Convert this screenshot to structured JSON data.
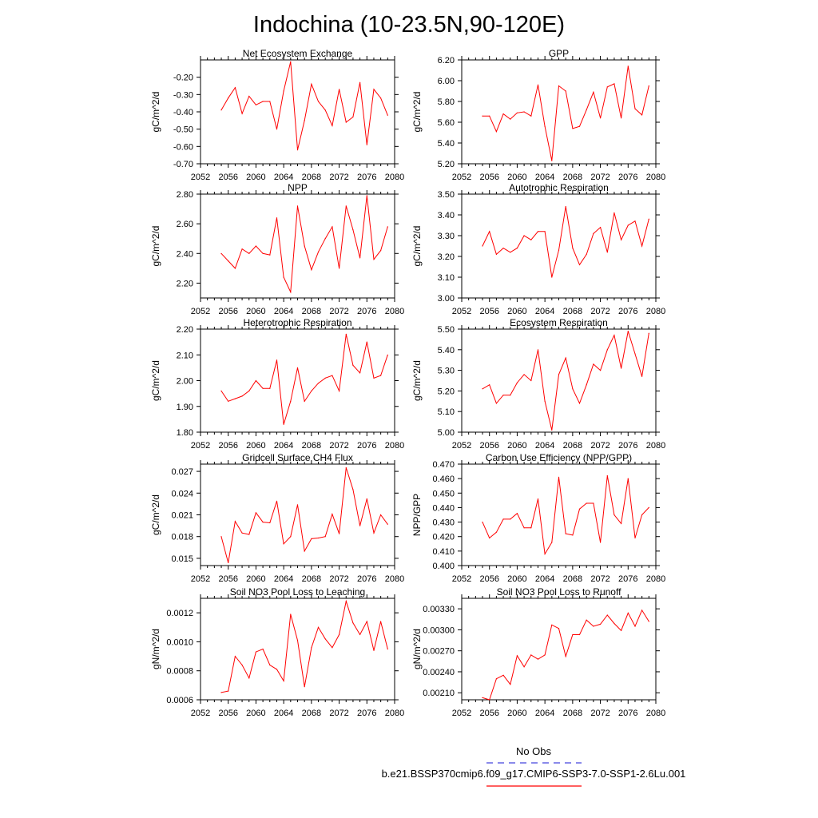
{
  "title": "Indochina (10-23.5N,90-120E)",
  "colors": {
    "model": "#ff0000",
    "obs": "#4444dd",
    "axis": "#000000"
  },
  "legend": {
    "obs_label": "No Obs",
    "model_label": "b.e21.BSSP370cmip6.f09_g17.CMIP6-SSP3-7.0-SSP1-2.6Lu.001"
  },
  "chart_data": [
    {
      "type": "line",
      "title": "Net Ecosystem Exchange",
      "ylabel": "gC/m^2/d",
      "xlim": [
        2052,
        2080
      ],
      "ylim": [
        -0.7,
        -0.1
      ],
      "xticks": [
        2052,
        2056,
        2060,
        2064,
        2068,
        2072,
        2076,
        2080
      ],
      "yticks": [
        "-0.70",
        "-0.60",
        "-0.50",
        "-0.40",
        "-0.30",
        "-0.20"
      ],
      "x": [
        2055,
        2056,
        2057,
        2058,
        2059,
        2060,
        2061,
        2062,
        2063,
        2064,
        2065,
        2066,
        2067,
        2068,
        2069,
        2070,
        2071,
        2072,
        2073,
        2074,
        2075,
        2076,
        2077,
        2078,
        2079
      ],
      "series": [
        {
          "values": [
            -0.39,
            -0.32,
            -0.26,
            -0.41,
            -0.31,
            -0.36,
            -0.34,
            -0.34,
            -0.5,
            -0.28,
            -0.11,
            -0.62,
            -0.45,
            -0.24,
            -0.34,
            -0.39,
            -0.48,
            -0.27,
            -0.46,
            -0.43,
            -0.23,
            -0.59,
            -0.27,
            -0.32,
            -0.42
          ]
        }
      ]
    },
    {
      "type": "line",
      "title": "GPP",
      "ylabel": "gC/m^2/d",
      "xlim": [
        2052,
        2080
      ],
      "ylim": [
        5.2,
        6.2
      ],
      "xticks": [
        2052,
        2056,
        2060,
        2064,
        2068,
        2072,
        2076,
        2080
      ],
      "yticks": [
        "5.20",
        "5.40",
        "5.60",
        "5.80",
        "6.00",
        "6.20"
      ],
      "x": [
        2055,
        2056,
        2057,
        2058,
        2059,
        2060,
        2061,
        2062,
        2063,
        2064,
        2065,
        2066,
        2067,
        2068,
        2069,
        2070,
        2071,
        2072,
        2073,
        2074,
        2075,
        2076,
        2077,
        2078,
        2079
      ],
      "series": [
        {
          "values": [
            5.66,
            5.66,
            5.51,
            5.68,
            5.63,
            5.69,
            5.7,
            5.66,
            5.96,
            5.56,
            5.23,
            5.95,
            5.9,
            5.54,
            5.56,
            5.72,
            5.89,
            5.64,
            5.94,
            5.97,
            5.64,
            6.14,
            5.73,
            5.67,
            5.95
          ]
        }
      ]
    },
    {
      "type": "line",
      "title": "NPP",
      "ylabel": "gC/m^2/d",
      "xlim": [
        2052,
        2080
      ],
      "ylim": [
        2.1,
        2.8
      ],
      "xticks": [
        2052,
        2056,
        2060,
        2064,
        2068,
        2072,
        2076,
        2080
      ],
      "yticks": [
        "2.20",
        "2.40",
        "2.60",
        "2.80"
      ],
      "x": [
        2055,
        2056,
        2057,
        2058,
        2059,
        2060,
        2061,
        2062,
        2063,
        2064,
        2065,
        2066,
        2067,
        2068,
        2069,
        2070,
        2071,
        2072,
        2073,
        2074,
        2075,
        2076,
        2077,
        2078,
        2079
      ],
      "series": [
        {
          "values": [
            2.4,
            2.35,
            2.3,
            2.43,
            2.4,
            2.45,
            2.4,
            2.39,
            2.64,
            2.24,
            2.14,
            2.72,
            2.45,
            2.29,
            2.41,
            2.5,
            2.58,
            2.3,
            2.72,
            2.56,
            2.37,
            2.79,
            2.36,
            2.42,
            2.58
          ]
        }
      ]
    },
    {
      "type": "line",
      "title": "Autotrophic Respiration",
      "ylabel": "gC/m^2/d",
      "xlim": [
        2052,
        2080
      ],
      "ylim": [
        3.0,
        3.5
      ],
      "xticks": [
        2052,
        2056,
        2060,
        2064,
        2068,
        2072,
        2076,
        2080
      ],
      "yticks": [
        "3.00",
        "3.10",
        "3.20",
        "3.30",
        "3.40",
        "3.50"
      ],
      "x": [
        2055,
        2056,
        2057,
        2058,
        2059,
        2060,
        2061,
        2062,
        2063,
        2064,
        2065,
        2066,
        2067,
        2068,
        2069,
        2070,
        2071,
        2072,
        2073,
        2074,
        2075,
        2076,
        2077,
        2078,
        2079
      ],
      "series": [
        {
          "values": [
            3.25,
            3.32,
            3.21,
            3.24,
            3.22,
            3.24,
            3.3,
            3.28,
            3.32,
            3.32,
            3.1,
            3.23,
            3.44,
            3.24,
            3.16,
            3.21,
            3.31,
            3.34,
            3.22,
            3.41,
            3.28,
            3.35,
            3.37,
            3.25,
            3.38
          ]
        }
      ]
    },
    {
      "type": "line",
      "title": "Heterotrophic Respiration",
      "ylabel": "gC/m^2/d",
      "xlim": [
        2052,
        2080
      ],
      "ylim": [
        1.8,
        2.2
      ],
      "xticks": [
        2052,
        2056,
        2060,
        2064,
        2068,
        2072,
        2076,
        2080
      ],
      "yticks": [
        "1.80",
        "1.90",
        "2.00",
        "2.10",
        "2.20"
      ],
      "x": [
        2055,
        2056,
        2057,
        2058,
        2059,
        2060,
        2061,
        2062,
        2063,
        2064,
        2065,
        2066,
        2067,
        2068,
        2069,
        2070,
        2071,
        2072,
        2073,
        2074,
        2075,
        2076,
        2077,
        2078,
        2079
      ],
      "series": [
        {
          "values": [
            1.96,
            1.92,
            1.93,
            1.94,
            1.96,
            2.0,
            1.97,
            1.97,
            2.08,
            1.83,
            1.92,
            2.05,
            1.92,
            1.96,
            1.99,
            2.01,
            2.02,
            1.96,
            2.18,
            2.06,
            2.03,
            2.15,
            2.01,
            2.02,
            2.1
          ]
        }
      ]
    },
    {
      "type": "line",
      "title": "Ecosystem Respiration",
      "ylabel": "gC/m^2/d",
      "xlim": [
        2052,
        2080
      ],
      "ylim": [
        5.0,
        5.5
      ],
      "xticks": [
        2052,
        2056,
        2060,
        2064,
        2068,
        2072,
        2076,
        2080
      ],
      "yticks": [
        "5.00",
        "5.10",
        "5.20",
        "5.30",
        "5.40",
        "5.50"
      ],
      "x": [
        2055,
        2056,
        2057,
        2058,
        2059,
        2060,
        2061,
        2062,
        2063,
        2064,
        2065,
        2066,
        2067,
        2068,
        2069,
        2070,
        2071,
        2072,
        2073,
        2074,
        2075,
        2076,
        2077,
        2078,
        2079
      ],
      "series": [
        {
          "values": [
            5.21,
            5.23,
            5.14,
            5.18,
            5.18,
            5.24,
            5.28,
            5.25,
            5.4,
            5.15,
            5.01,
            5.28,
            5.36,
            5.21,
            5.14,
            5.23,
            5.33,
            5.3,
            5.4,
            5.47,
            5.31,
            5.49,
            5.38,
            5.27,
            5.48
          ]
        }
      ]
    },
    {
      "type": "line",
      "title": "Gridcell Surface CH4 Flux",
      "ylabel": "gC/m^2/d",
      "xlim": [
        2052,
        2080
      ],
      "ylim": [
        0.014,
        0.028
      ],
      "xticks": [
        2052,
        2056,
        2060,
        2064,
        2068,
        2072,
        2076,
        2080
      ],
      "yticks": [
        "0.015",
        "0.018",
        "0.021",
        "0.024",
        "0.027"
      ],
      "x": [
        2055,
        2056,
        2057,
        2058,
        2059,
        2060,
        2061,
        2062,
        2063,
        2064,
        2065,
        2066,
        2067,
        2068,
        2069,
        2070,
        2071,
        2072,
        2073,
        2074,
        2075,
        2076,
        2077,
        2078,
        2079
      ],
      "series": [
        {
          "values": [
            0.018,
            0.0144,
            0.0201,
            0.0185,
            0.0183,
            0.0213,
            0.02,
            0.0199,
            0.0229,
            0.017,
            0.018,
            0.0224,
            0.016,
            0.0177,
            0.0178,
            0.018,
            0.0211,
            0.0184,
            0.0275,
            0.0245,
            0.0195,
            0.0232,
            0.0185,
            0.021,
            0.0197
          ]
        }
      ]
    },
    {
      "type": "line",
      "title": "Carbon Use Efficiency (NPP/GPP)",
      "ylabel": "NPP/GPP",
      "xlim": [
        2052,
        2080
      ],
      "ylim": [
        0.4,
        0.47
      ],
      "xticks": [
        2052,
        2056,
        2060,
        2064,
        2068,
        2072,
        2076,
        2080
      ],
      "yticks": [
        "0.400",
        "0.410",
        "0.420",
        "0.430",
        "0.440",
        "0.450",
        "0.460",
        "0.470"
      ],
      "x": [
        2055,
        2056,
        2057,
        2058,
        2059,
        2060,
        2061,
        2062,
        2063,
        2064,
        2065,
        2066,
        2067,
        2068,
        2069,
        2070,
        2071,
        2072,
        2073,
        2074,
        2075,
        2076,
        2077,
        2078,
        2079
      ],
      "series": [
        {
          "values": [
            0.43,
            0.419,
            0.423,
            0.432,
            0.432,
            0.436,
            0.426,
            0.426,
            0.446,
            0.408,
            0.416,
            0.461,
            0.422,
            0.421,
            0.439,
            0.443,
            0.443,
            0.416,
            0.462,
            0.435,
            0.429,
            0.46,
            0.419,
            0.435,
            0.44
          ]
        }
      ]
    },
    {
      "type": "line",
      "title": "Soil NO3 Pool Loss to Leaching",
      "ylabel": "gN/m^2/d",
      "xlim": [
        2052,
        2080
      ],
      "ylim": [
        0.0006,
        0.0013
      ],
      "xticks": [
        2052,
        2056,
        2060,
        2064,
        2068,
        2072,
        2076,
        2080
      ],
      "yticks": [
        "0.0006",
        "0.0008",
        "0.0010",
        "0.0012"
      ],
      "x": [
        2055,
        2056,
        2057,
        2058,
        2059,
        2060,
        2061,
        2062,
        2063,
        2064,
        2065,
        2066,
        2067,
        2068,
        2069,
        2070,
        2071,
        2072,
        2073,
        2074,
        2075,
        2076,
        2077,
        2078,
        2079
      ],
      "series": [
        {
          "values": [
            0.00065,
            0.00066,
            0.0009,
            0.00084,
            0.00075,
            0.00093,
            0.00095,
            0.00084,
            0.00081,
            0.00073,
            0.00119,
            0.00101,
            0.00069,
            0.00096,
            0.0011,
            0.00102,
            0.00096,
            0.00105,
            0.00128,
            0.00113,
            0.00105,
            0.00114,
            0.00094,
            0.00114,
            0.00095
          ]
        }
      ]
    },
    {
      "type": "line",
      "title": "Soil NO3 Pool Loss to Runoff",
      "ylabel": "gN/m^2/d",
      "xlim": [
        2052,
        2080
      ],
      "ylim": [
        0.002,
        0.00345
      ],
      "xticks": [
        2052,
        2056,
        2060,
        2064,
        2068,
        2072,
        2076,
        2080
      ],
      "yticks": [
        "0.00210",
        "0.00240",
        "0.00270",
        "0.00300",
        "0.00330"
      ],
      "x": [
        2055,
        2056,
        2057,
        2058,
        2059,
        2060,
        2061,
        2062,
        2063,
        2064,
        2065,
        2066,
        2067,
        2068,
        2069,
        2070,
        2071,
        2072,
        2073,
        2074,
        2075,
        2076,
        2077,
        2078,
        2079
      ],
      "series": [
        {
          "values": [
            0.00203,
            0.002,
            0.0023,
            0.00235,
            0.00222,
            0.00263,
            0.00247,
            0.00264,
            0.00258,
            0.00264,
            0.00307,
            0.00302,
            0.00262,
            0.00293,
            0.00293,
            0.00314,
            0.00305,
            0.00308,
            0.00321,
            0.00309,
            0.00299,
            0.00324,
            0.00305,
            0.00328,
            0.00312
          ]
        }
      ]
    }
  ]
}
